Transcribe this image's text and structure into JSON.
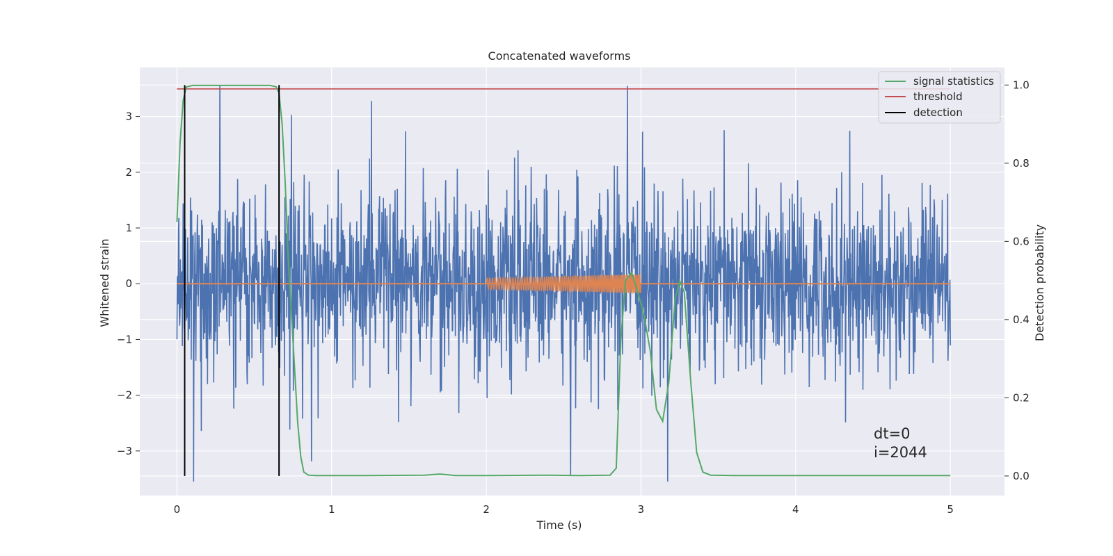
{
  "chart_data": {
    "type": "line",
    "title": "Concatenated waveforms",
    "xlabel": "Time (s)",
    "ylabel": "Whitened strain",
    "y2label": "Detection probability",
    "xlim": [
      -0.24,
      5.35
    ],
    "ylim": [
      -3.8,
      3.88
    ],
    "y2lim": [
      -0.05,
      1.045
    ],
    "xticks": [
      0,
      1,
      2,
      3,
      4,
      5
    ],
    "yticks": [
      -3,
      -2,
      -1,
      0,
      1,
      2,
      3
    ],
    "yticklabels": [
      "−3",
      "−2",
      "−1",
      "0",
      "1",
      "2",
      "3"
    ],
    "y2ticks": [
      0.0,
      0.2,
      0.4,
      0.6,
      0.8,
      1.0
    ],
    "y2ticklabels": [
      "0.0",
      "0.2",
      "0.4",
      "0.6",
      "0.8",
      "1.0"
    ],
    "grid": true,
    "legend_position": "top-right",
    "legend": [
      "signal statistics",
      "threshold",
      "detection"
    ],
    "colors": {
      "strain": "#4c72b0",
      "waveform": "#dd8452",
      "signal_statistics": "#55a868",
      "threshold": "#c44e52",
      "detection": "#000000",
      "background": "#eaeaf2",
      "grid": "#ffffff"
    },
    "strain": {
      "t_start": 0,
      "t_end": 5,
      "typical_amplitude": 0.75,
      "max_amplitude": 3.55
    },
    "injected_waveform": {
      "t_start": 2.0,
      "t_end": 3.0,
      "amp_start": 0.1,
      "amp_end": 0.17
    },
    "signal_statistics": {
      "t": [
        0.0,
        0.02,
        0.04,
        0.06,
        0.1,
        0.3,
        0.6,
        0.64,
        0.66,
        0.68,
        0.7,
        0.72,
        0.75,
        0.78,
        0.8,
        0.82,
        0.85,
        0.9,
        1.2,
        1.6,
        1.7,
        1.8,
        2.0,
        2.4,
        2.6,
        2.8,
        2.84,
        2.87,
        2.9,
        2.94,
        2.98,
        3.02,
        3.06,
        3.1,
        3.14,
        3.18,
        3.22,
        3.25,
        3.28,
        3.32,
        3.36,
        3.4,
        3.45,
        3.6,
        5.0
      ],
      "values": [
        0.65,
        0.85,
        0.96,
        0.995,
        0.999,
        0.999,
        0.999,
        0.996,
        0.98,
        0.9,
        0.75,
        0.55,
        0.35,
        0.14,
        0.05,
        0.01,
        0.002,
        0.001,
        0.001,
        0.002,
        0.005,
        0.001,
        0.001,
        0.002,
        0.001,
        0.002,
        0.02,
        0.35,
        0.5,
        0.52,
        0.47,
        0.41,
        0.32,
        0.17,
        0.14,
        0.24,
        0.45,
        0.5,
        0.47,
        0.25,
        0.06,
        0.01,
        0.002,
        0.001,
        0.001
      ]
    },
    "threshold": {
      "value": 0.99,
      "t_start": 0,
      "t_end": 5
    },
    "detections": [
      0.05,
      0.66
    ],
    "annotations": [
      "dt=0",
      "i=2044"
    ]
  }
}
